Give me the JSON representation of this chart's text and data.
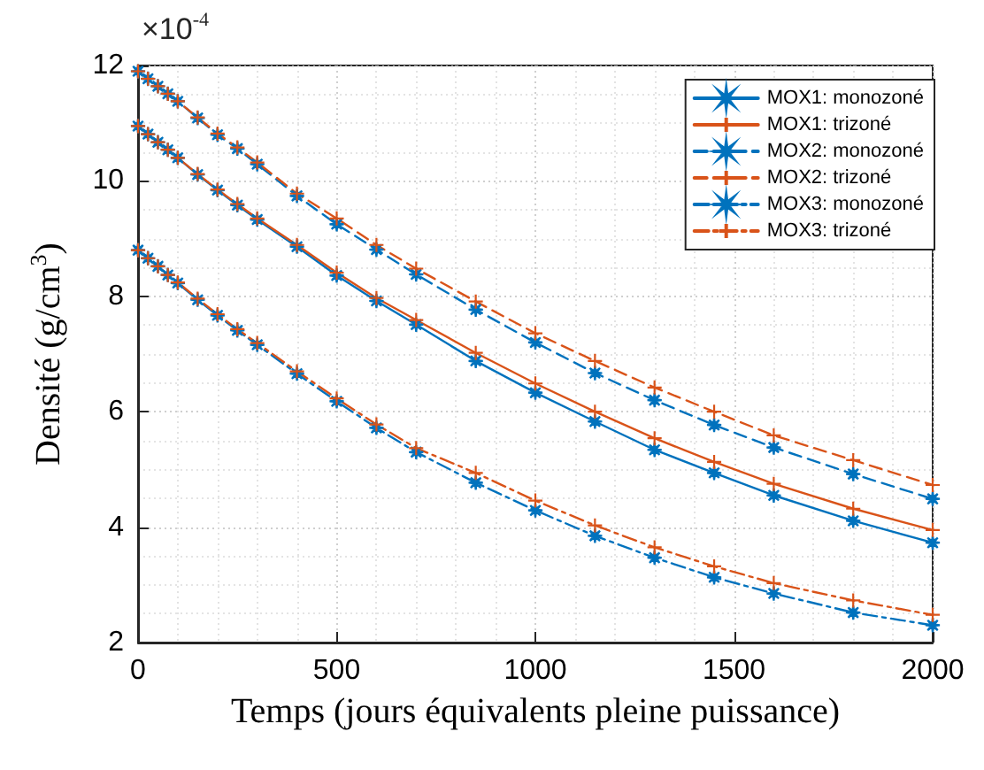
{
  "chart_data": {
    "type": "line",
    "xlabel": "Temps (jours équivalents pleine puissance)",
    "ylabel": "Densité (g/cm$^{3}$)",
    "annotations": [
      "×10$^{-4}$"
    ],
    "x": [
      0,
      25,
      50,
      75,
      100,
      150,
      200,
      250,
      300,
      400,
      500,
      600,
      700,
      850,
      1000,
      1150,
      1300,
      1450,
      1600,
      1800,
      2000
    ],
    "series": [
      {
        "name": "MOX1: monozoné",
        "color": "#0072bd",
        "marker": "star",
        "line_style": "solid",
        "values": [
          10.95,
          10.81,
          10.67,
          10.54,
          10.4,
          10.11,
          9.84,
          9.58,
          9.33,
          8.86,
          8.36,
          7.92,
          7.51,
          6.88,
          6.33,
          5.83,
          5.34,
          4.94,
          4.55,
          4.11,
          3.73
        ]
      },
      {
        "name": "MOX1: trizoné",
        "color": "#d95319",
        "marker": "cross",
        "line_style": "solid",
        "values": [
          10.95,
          10.81,
          10.67,
          10.54,
          10.4,
          10.12,
          9.85,
          9.6,
          9.35,
          8.89,
          8.41,
          7.97,
          7.59,
          7.02,
          6.49,
          6.0,
          5.54,
          5.13,
          4.75,
          4.32,
          3.95
        ]
      },
      {
        "name": "MOX2: monozoné",
        "color": "#0072bd",
        "marker": "star",
        "line_style": "dashed",
        "values": [
          11.9,
          11.77,
          11.64,
          11.51,
          11.38,
          11.09,
          10.8,
          10.56,
          10.29,
          9.74,
          9.25,
          8.81,
          8.38,
          7.77,
          7.2,
          6.67,
          6.2,
          5.77,
          5.38,
          4.92,
          4.49
        ]
      },
      {
        "name": "MOX2: trizoné",
        "color": "#d95319",
        "marker": "cross",
        "line_style": "dashed",
        "values": [
          11.9,
          11.77,
          11.64,
          11.51,
          11.38,
          11.1,
          10.82,
          10.58,
          10.32,
          9.78,
          9.35,
          8.89,
          8.48,
          7.91,
          7.36,
          6.88,
          6.42,
          6.0,
          5.59,
          5.16,
          4.73
        ]
      },
      {
        "name": "MOX3: monozoné",
        "color": "#0072bd",
        "marker": "star",
        "line_style": "dashdot",
        "values": [
          8.8,
          8.66,
          8.52,
          8.37,
          8.23,
          7.94,
          7.67,
          7.41,
          7.16,
          6.66,
          6.18,
          5.72,
          5.3,
          4.77,
          4.29,
          3.85,
          3.47,
          3.13,
          2.85,
          2.52,
          2.3
        ]
      },
      {
        "name": "MOX3: trizoné",
        "color": "#d95319",
        "marker": "cross",
        "line_style": "dashdot",
        "values": [
          8.8,
          8.66,
          8.52,
          8.37,
          8.24,
          7.96,
          7.69,
          7.43,
          7.19,
          6.7,
          6.23,
          5.78,
          5.37,
          4.94,
          4.46,
          4.03,
          3.65,
          3.32,
          3.03,
          2.73,
          2.48
        ]
      }
    ],
    "xlim": [
      0,
      2000
    ],
    "xticks": [
      0,
      500,
      1000,
      1500,
      2000
    ],
    "ylim": [
      2,
      12
    ],
    "yticks": [
      2,
      4,
      6,
      8,
      10,
      12
    ],
    "grid": true,
    "legend": "top right"
  }
}
